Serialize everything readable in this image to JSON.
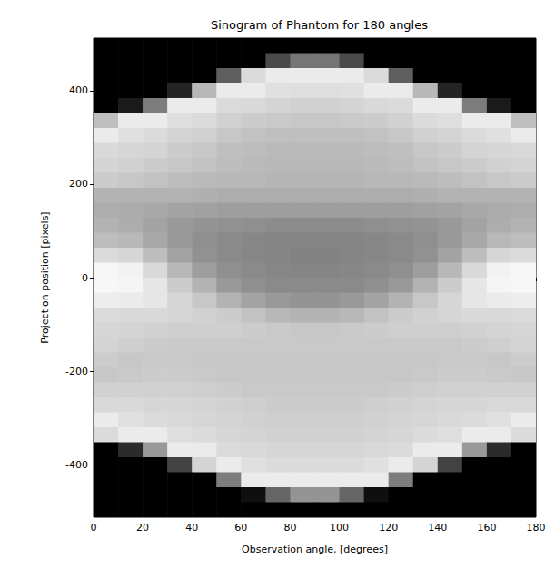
{
  "chart_data": {
    "type": "heatmap",
    "title": "Sinogram of Phantom for 180 angles",
    "x_label": "Observation angle, [degrees]",
    "y_label": "Projection position [pixels]",
    "xlim": [
      0,
      180
    ],
    "xticks": [
      0,
      20,
      40,
      60,
      80,
      100,
      120,
      140,
      160,
      180
    ],
    "ylim": [
      -512,
      512
    ],
    "yticks": [
      -400,
      -200,
      0,
      200,
      400
    ],
    "grid": false,
    "color": "gray",
    "color_range": [
      0,
      1
    ],
    "x_bins": [
      0,
      10,
      20,
      30,
      40,
      50,
      60,
      70,
      80,
      90,
      100,
      110,
      120,
      130,
      140,
      150,
      160,
      170,
      180
    ],
    "y_bins": [
      512,
      480,
      448,
      416,
      384,
      352,
      320,
      288,
      256,
      224,
      192,
      160,
      128,
      96,
      64,
      32,
      0,
      -32,
      -64,
      -96,
      -128,
      -160,
      -192,
      -224,
      -256,
      -288,
      -320,
      -352,
      -384,
      -416,
      -448,
      -480,
      -512
    ],
    "cells": [
      [
        0,
        0,
        0,
        0,
        0,
        0,
        0,
        0,
        0,
        0,
        0,
        0,
        0,
        0,
        0,
        0,
        0,
        0
      ],
      [
        0,
        0,
        0,
        0,
        0,
        0,
        0,
        0.29,
        0.46,
        0.46,
        0.29,
        0,
        0,
        0,
        0,
        0,
        0,
        0
      ],
      [
        0,
        0,
        0,
        0,
        0,
        0.37,
        0.86,
        0.92,
        0.92,
        0.92,
        0.92,
        0.86,
        0.37,
        0,
        0,
        0,
        0,
        0
      ],
      [
        0,
        0,
        0,
        0.14,
        0.72,
        0.92,
        0.92,
        0.88,
        0.87,
        0.87,
        0.88,
        0.92,
        0.92,
        0.72,
        0.14,
        0,
        0,
        0
      ],
      [
        0,
        0.1,
        0.49,
        0.92,
        0.92,
        0.86,
        0.85,
        0.83,
        0.82,
        0.82,
        0.83,
        0.85,
        0.86,
        0.92,
        0.92,
        0.49,
        0.1,
        0
      ],
      [
        0.75,
        0.92,
        0.92,
        0.87,
        0.86,
        0.82,
        0.8,
        0.79,
        0.78,
        0.78,
        0.79,
        0.8,
        0.82,
        0.86,
        0.87,
        0.92,
        0.92,
        0.75
      ],
      [
        0.92,
        0.88,
        0.86,
        0.83,
        0.82,
        0.78,
        0.76,
        0.75,
        0.75,
        0.75,
        0.75,
        0.76,
        0.78,
        0.82,
        0.83,
        0.86,
        0.88,
        0.92
      ],
      [
        0.85,
        0.84,
        0.83,
        0.8,
        0.78,
        0.75,
        0.74,
        0.73,
        0.73,
        0.73,
        0.73,
        0.74,
        0.75,
        0.78,
        0.8,
        0.83,
        0.84,
        0.85
      ],
      [
        0.83,
        0.82,
        0.8,
        0.78,
        0.76,
        0.74,
        0.73,
        0.72,
        0.72,
        0.72,
        0.72,
        0.73,
        0.74,
        0.76,
        0.78,
        0.8,
        0.82,
        0.83
      ],
      [
        0.8,
        0.78,
        0.76,
        0.74,
        0.73,
        0.72,
        0.72,
        0.71,
        0.71,
        0.71,
        0.71,
        0.72,
        0.72,
        0.73,
        0.74,
        0.76,
        0.78,
        0.8
      ],
      [
        0.7,
        0.7,
        0.7,
        0.7,
        0.69,
        0.68,
        0.68,
        0.68,
        0.68,
        0.68,
        0.68,
        0.68,
        0.68,
        0.69,
        0.7,
        0.7,
        0.7,
        0.7
      ],
      [
        0.68,
        0.67,
        0.66,
        0.64,
        0.63,
        0.62,
        0.62,
        0.62,
        0.62,
        0.62,
        0.62,
        0.62,
        0.62,
        0.63,
        0.64,
        0.66,
        0.67,
        0.68
      ],
      [
        0.7,
        0.68,
        0.64,
        0.6,
        0.58,
        0.57,
        0.56,
        0.55,
        0.55,
        0.55,
        0.55,
        0.56,
        0.57,
        0.58,
        0.6,
        0.64,
        0.68,
        0.7
      ],
      [
        0.74,
        0.72,
        0.66,
        0.6,
        0.56,
        0.54,
        0.53,
        0.52,
        0.52,
        0.52,
        0.52,
        0.53,
        0.54,
        0.56,
        0.6,
        0.66,
        0.72,
        0.74
      ],
      [
        0.86,
        0.84,
        0.74,
        0.64,
        0.57,
        0.54,
        0.53,
        0.52,
        0.51,
        0.51,
        0.52,
        0.53,
        0.54,
        0.57,
        0.64,
        0.74,
        0.84,
        0.86
      ],
      [
        0.97,
        0.95,
        0.85,
        0.72,
        0.62,
        0.56,
        0.54,
        0.53,
        0.52,
        0.52,
        0.53,
        0.54,
        0.56,
        0.62,
        0.72,
        0.85,
        0.95,
        0.97
      ],
      [
        0.97,
        0.96,
        0.9,
        0.8,
        0.7,
        0.6,
        0.56,
        0.54,
        0.54,
        0.54,
        0.54,
        0.56,
        0.6,
        0.7,
        0.8,
        0.9,
        0.96,
        0.97
      ],
      [
        0.93,
        0.92,
        0.9,
        0.84,
        0.78,
        0.7,
        0.64,
        0.6,
        0.58,
        0.58,
        0.6,
        0.64,
        0.7,
        0.78,
        0.84,
        0.9,
        0.92,
        0.93
      ],
      [
        0.86,
        0.85,
        0.85,
        0.84,
        0.82,
        0.8,
        0.76,
        0.72,
        0.7,
        0.7,
        0.72,
        0.76,
        0.8,
        0.82,
        0.84,
        0.85,
        0.85,
        0.86
      ],
      [
        0.84,
        0.83,
        0.82,
        0.81,
        0.81,
        0.81,
        0.8,
        0.79,
        0.78,
        0.78,
        0.79,
        0.8,
        0.81,
        0.81,
        0.81,
        0.82,
        0.83,
        0.84
      ],
      [
        0.83,
        0.81,
        0.8,
        0.79,
        0.79,
        0.79,
        0.79,
        0.79,
        0.79,
        0.79,
        0.79,
        0.79,
        0.79,
        0.79,
        0.79,
        0.8,
        0.81,
        0.83
      ],
      [
        0.8,
        0.78,
        0.79,
        0.79,
        0.78,
        0.78,
        0.78,
        0.78,
        0.78,
        0.78,
        0.78,
        0.78,
        0.78,
        0.78,
        0.79,
        0.79,
        0.78,
        0.8
      ],
      [
        0.78,
        0.79,
        0.8,
        0.8,
        0.79,
        0.78,
        0.78,
        0.78,
        0.78,
        0.78,
        0.78,
        0.78,
        0.78,
        0.79,
        0.8,
        0.8,
        0.79,
        0.78
      ],
      [
        0.82,
        0.82,
        0.82,
        0.82,
        0.81,
        0.8,
        0.79,
        0.79,
        0.79,
        0.79,
        0.79,
        0.79,
        0.8,
        0.81,
        0.82,
        0.82,
        0.82,
        0.82
      ],
      [
        0.85,
        0.85,
        0.84,
        0.84,
        0.83,
        0.82,
        0.81,
        0.8,
        0.8,
        0.8,
        0.8,
        0.81,
        0.82,
        0.83,
        0.84,
        0.84,
        0.85,
        0.85
      ],
      [
        0.92,
        0.88,
        0.86,
        0.85,
        0.84,
        0.83,
        0.82,
        0.81,
        0.81,
        0.81,
        0.81,
        0.82,
        0.83,
        0.84,
        0.85,
        0.86,
        0.88,
        0.92
      ],
      [
        0.86,
        0.92,
        0.92,
        0.87,
        0.86,
        0.84,
        0.83,
        0.82,
        0.82,
        0.82,
        0.82,
        0.83,
        0.84,
        0.86,
        0.87,
        0.92,
        0.92,
        0.86
      ],
      [
        0,
        0.17,
        0.6,
        0.92,
        0.92,
        0.86,
        0.85,
        0.84,
        0.84,
        0.84,
        0.84,
        0.85,
        0.86,
        0.92,
        0.92,
        0.6,
        0.17,
        0
      ],
      [
        0,
        0,
        0,
        0.26,
        0.83,
        0.92,
        0.88,
        0.86,
        0.86,
        0.86,
        0.86,
        0.88,
        0.92,
        0.83,
        0.26,
        0,
        0,
        0
      ],
      [
        0,
        0,
        0,
        0,
        0,
        0.49,
        0.92,
        0.92,
        0.92,
        0.92,
        0.92,
        0.92,
        0.49,
        0,
        0,
        0,
        0,
        0
      ],
      [
        0,
        0,
        0,
        0,
        0,
        0,
        0.06,
        0.4,
        0.58,
        0.58,
        0.4,
        0.06,
        0,
        0,
        0,
        0,
        0,
        0
      ],
      [
        0,
        0,
        0,
        0,
        0,
        0,
        0,
        0,
        0,
        0,
        0,
        0,
        0,
        0,
        0,
        0,
        0,
        0
      ]
    ]
  }
}
